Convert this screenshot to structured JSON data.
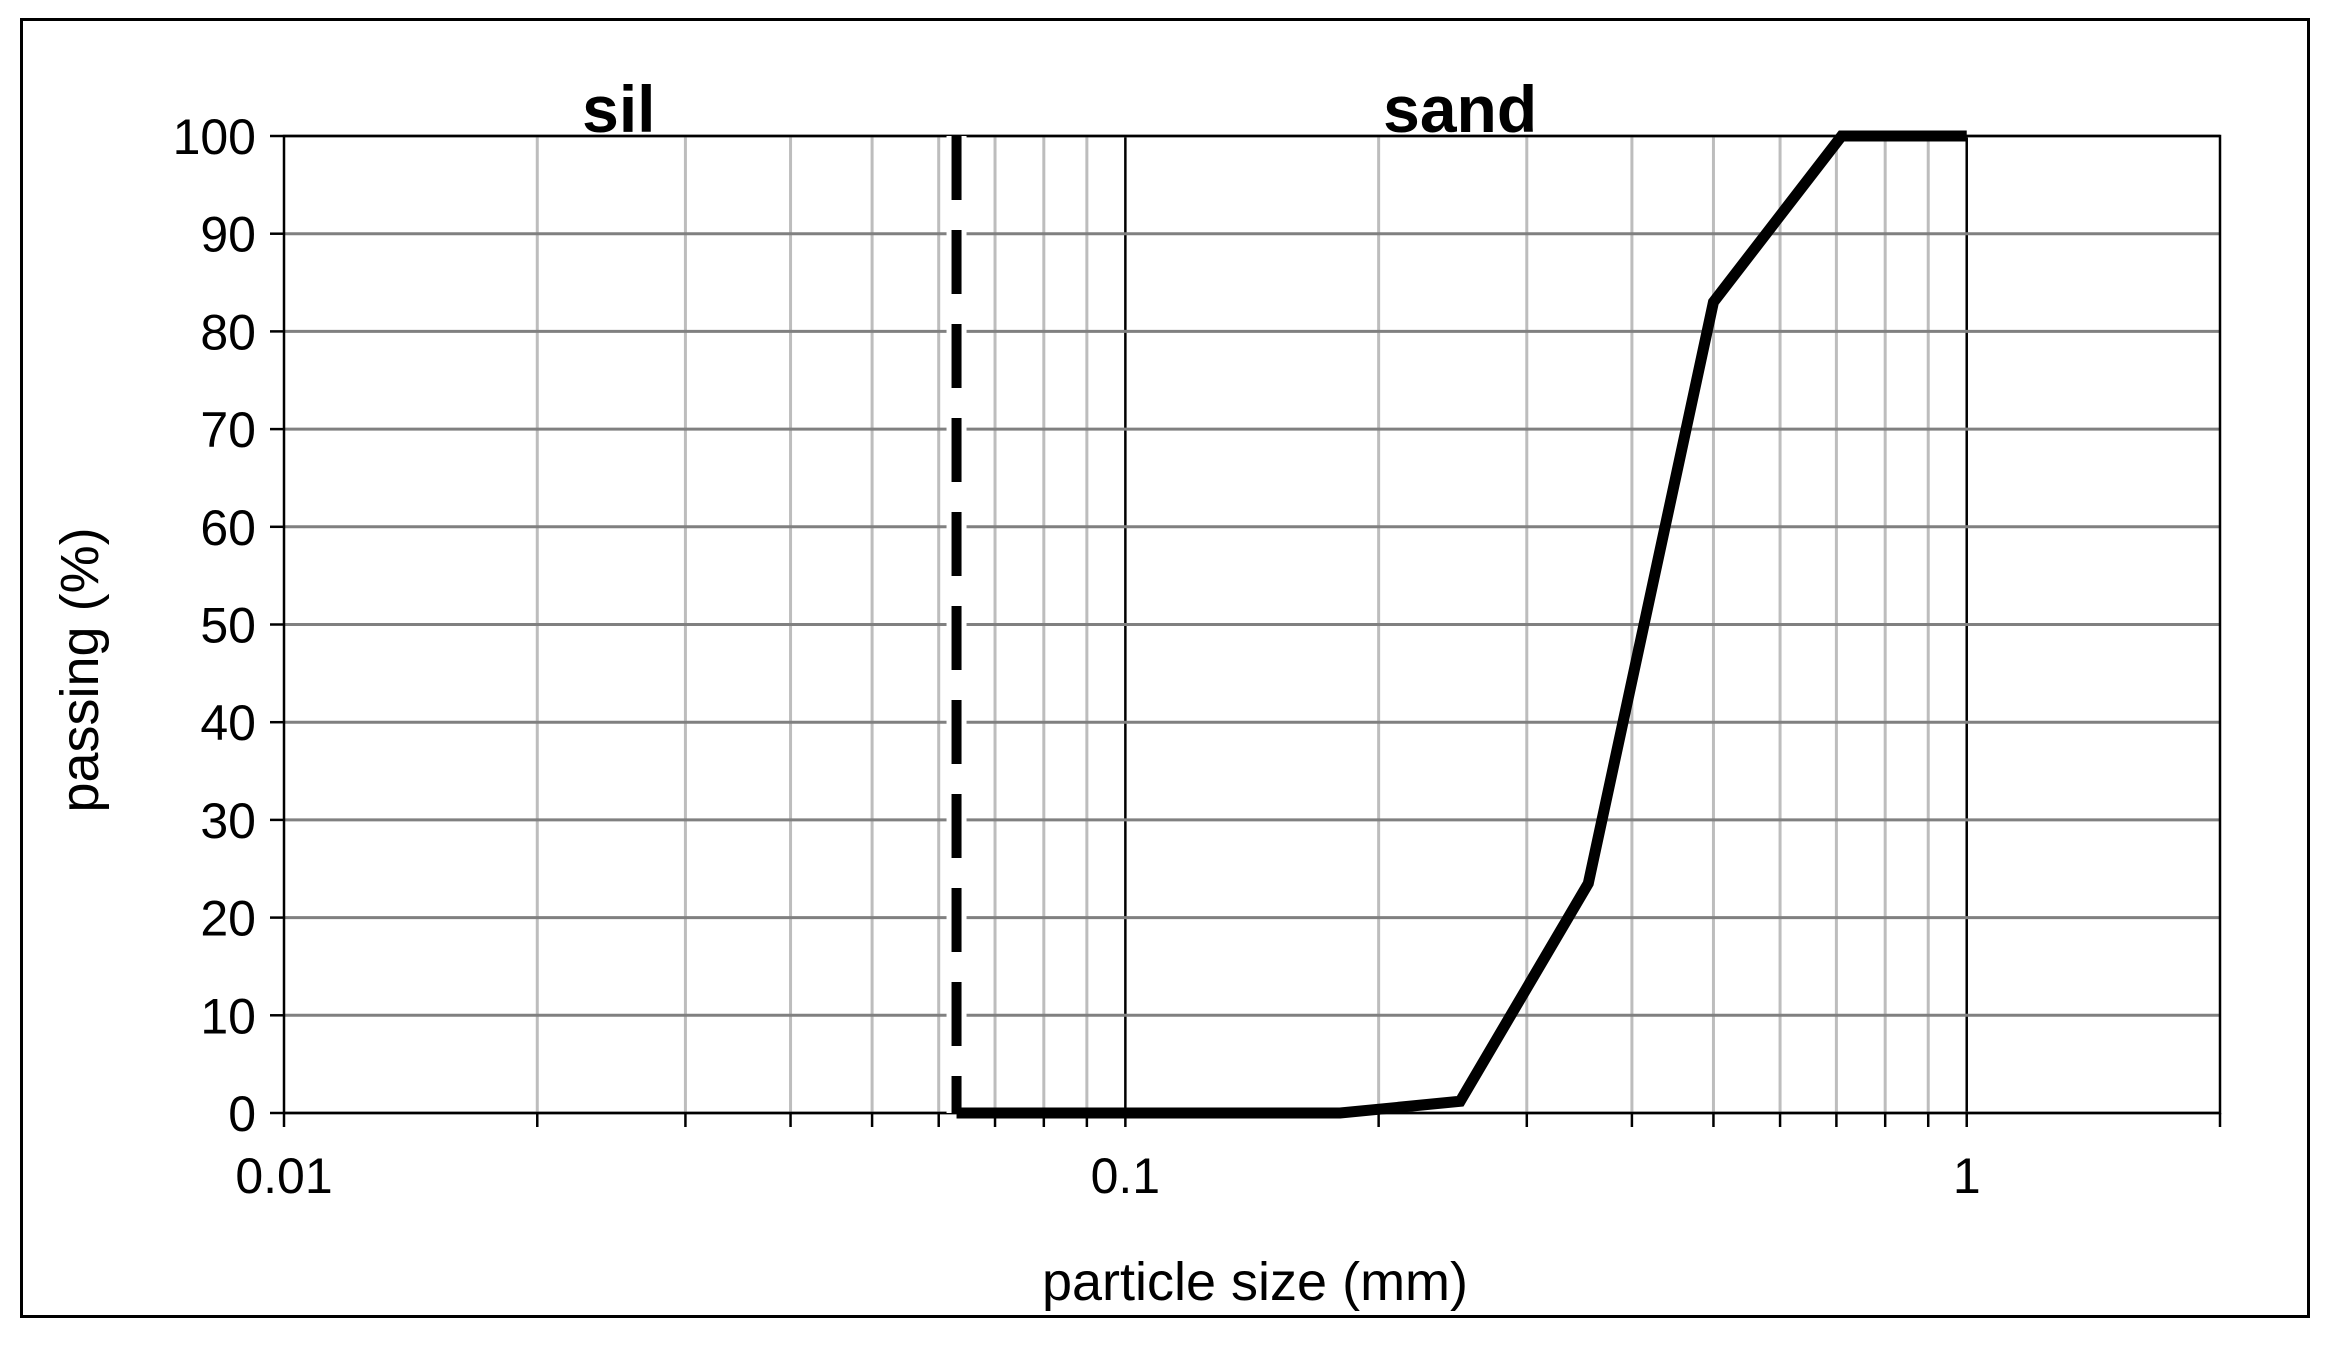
{
  "chart_data": {
    "type": "line",
    "title": "",
    "xlabel": "particle size (mm)",
    "ylabel": "passing (%)",
    "x_scale": "log",
    "xlim": [
      0.01,
      2
    ],
    "ylim": [
      0,
      100
    ],
    "x_ticks": [
      "0.01",
      "0.1",
      "1"
    ],
    "y_ticks": [
      "0",
      "10",
      "20",
      "30",
      "40",
      "50",
      "60",
      "70",
      "80",
      "90",
      "100"
    ],
    "grid": true,
    "legend": "none",
    "annotations": [
      {
        "text": "sil",
        "x": 0.025
      },
      {
        "text": "sand",
        "x": 0.25
      }
    ],
    "boundary_line": {
      "style": "dashed",
      "x": 0.063
    },
    "series": [
      {
        "x": [
          0.063,
          0.1,
          0.18,
          0.25,
          0.355,
          0.5,
          0.71,
          1.0
        ],
        "values": [
          0,
          0,
          0,
          1.2,
          23.5,
          83,
          100,
          100
        ]
      }
    ]
  }
}
